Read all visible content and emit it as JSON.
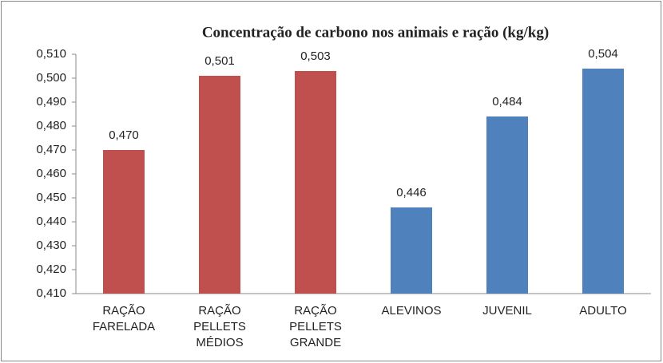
{
  "chart_data": {
    "type": "bar",
    "title": "Concentração de carbono nos animais e ração (kg/kg)",
    "categories": [
      "RAÇÃO FARELADA",
      "RAÇÃO PELLETS MÉDIOS",
      "RAÇÃO PELLETS GRANDE",
      "ALEVINOS",
      "JUVENIL",
      "ADULTO"
    ],
    "values": [
      0.47,
      0.501,
      0.503,
      0.446,
      0.484,
      0.504
    ],
    "value_labels": [
      "0,470",
      "0,501",
      "0,503",
      "0,446",
      "0,484",
      "0,504"
    ],
    "colors": [
      "#c0504d",
      "#c0504d",
      "#c0504d",
      "#4f81bd",
      "#4f81bd",
      "#4f81bd"
    ],
    "ylim": [
      0.41,
      0.51
    ],
    "yticks": [
      {
        "value": 0.41,
        "label": "0,410"
      },
      {
        "value": 0.42,
        "label": "0,420"
      },
      {
        "value": 0.43,
        "label": "0,430"
      },
      {
        "value": 0.44,
        "label": "0,440"
      },
      {
        "value": 0.45,
        "label": "0,450"
      },
      {
        "value": 0.46,
        "label": "0,460"
      },
      {
        "value": 0.47,
        "label": "0,470"
      },
      {
        "value": 0.48,
        "label": "0,480"
      },
      {
        "value": 0.49,
        "label": "0,490"
      },
      {
        "value": 0.5,
        "label": "0,500"
      },
      {
        "value": 0.51,
        "label": "0,510"
      }
    ],
    "grid": false
  }
}
